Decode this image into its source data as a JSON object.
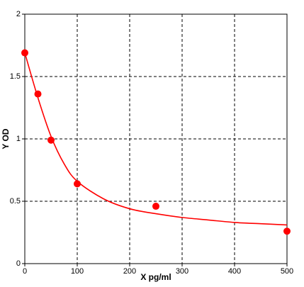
{
  "chart_data": {
    "type": "scatter",
    "x_label": "X pg/ml",
    "y_label": "Y OD",
    "xlim": [
      0,
      500
    ],
    "ylim": [
      0,
      2
    ],
    "xticks": [
      0,
      100,
      200,
      300,
      400,
      500
    ],
    "yticks": [
      0,
      0.5,
      1,
      1.5,
      2
    ],
    "grid": true,
    "series": [
      {
        "type": "line",
        "color": "#ff0000",
        "x": [
          0,
          25,
          50,
          75,
          100,
          150,
          200,
          250,
          300,
          350,
          400,
          450,
          500
        ],
        "values": [
          1.69,
          1.33,
          1.02,
          0.8,
          0.66,
          0.52,
          0.44,
          0.4,
          0.37,
          0.35,
          0.33,
          0.32,
          0.31
        ]
      },
      {
        "type": "scatter",
        "color": "#ff0000",
        "x": [
          0,
          25,
          50,
          100,
          250,
          500
        ],
        "values": [
          1.69,
          1.36,
          0.99,
          0.64,
          0.46,
          0.26
        ]
      }
    ]
  }
}
